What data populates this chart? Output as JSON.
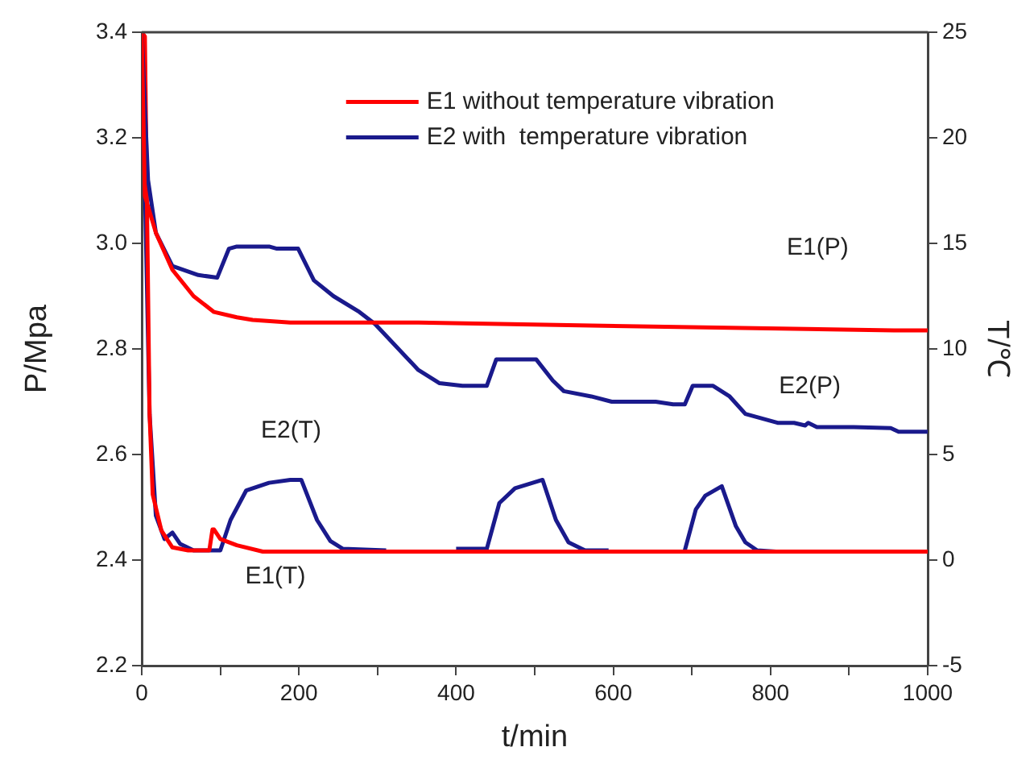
{
  "chart_data": {
    "type": "line",
    "xlabel": "t/min",
    "ylabel": "P/Mpa",
    "y2label": "T/℃",
    "xlim": [
      0,
      1000
    ],
    "xticks": [
      0,
      {
        "value": 100,
        "label": null
      },
      200,
      {
        "value": 300,
        "label": null
      },
      400,
      {
        "value": 500,
        "label": null
      },
      600,
      {
        "value": 700,
        "label": null
      },
      800,
      {
        "value": 900,
        "label": null
      },
      1000
    ],
    "ylim": [
      2.2,
      3.4
    ],
    "yticks": [
      2.2,
      2.4,
      2.6,
      2.8,
      {
        "value": 3,
        "label": "3.0"
      },
      3.2,
      3.4
    ],
    "y2lim": [
      -5,
      25
    ],
    "y2ticks": [
      -5,
      0,
      5,
      10,
      15,
      20,
      25
    ],
    "grid": false,
    "legend": "top",
    "marker": "none",
    "line_style": "solid",
    "series": [
      {
        "name": "E1 without temperature vibration",
        "color": "#ff0000",
        "x": [
          0,
          4,
          18,
          39,
          66,
          92,
          121,
          141,
          189,
          352,
          543,
          957,
          1000
        ],
        "values": [
          3.4,
          3.09,
          3.02,
          2.95,
          2.9,
          2.87,
          2.86,
          2.855,
          2.85,
          2.85,
          2.845,
          2.835,
          2.835
        ]
      },
      {
        "name": "E2 with  temperature vibration",
        "color": "#1a1a8c",
        "x": [
          0,
          8,
          18,
          39,
          72,
          96,
          111,
          121,
          162,
          172,
          199,
          219,
          244,
          277,
          297,
          352,
          379,
          408,
          439,
          451,
          502,
          523,
          537,
          572,
          598,
          654,
          676,
          691,
          701,
          727,
          748,
          768,
          809,
          830,
          844,
          848,
          859,
          906,
          953,
          963,
          1000
        ],
        "values": [
          3.4,
          3.12,
          3.02,
          2.957,
          2.94,
          2.935,
          2.99,
          2.994,
          2.994,
          2.99,
          2.99,
          2.93,
          2.9,
          2.87,
          2.847,
          2.76,
          2.735,
          2.73,
          2.73,
          2.78,
          2.78,
          2.74,
          2.72,
          2.71,
          2.7,
          2.7,
          2.695,
          2.695,
          2.73,
          2.73,
          2.71,
          2.677,
          2.66,
          2.66,
          2.655,
          2.66,
          2.652,
          2.652,
          2.65,
          2.643,
          2.643
        ]
      },
      {
        "color": "#ff0000",
        "axis": "y2",
        "x": [
          0,
          4,
          10,
          14,
          25,
          39,
          59,
          86,
          90,
          92,
          100,
          121,
          154,
          1000
        ],
        "values": [
          25,
          24.8,
          6.9,
          3.1,
          1.4,
          0.6,
          0.46,
          0.46,
          1.45,
          1.45,
          1.0,
          0.7,
          0.4,
          0.4
        ]
      },
      {
        "color": "#1a1a8c",
        "axis": "y2",
        "x": [
          0,
          10,
          18,
          29,
          39,
          49,
          66,
          100,
          113,
          133,
          162,
          189,
          203,
          223,
          240,
          256,
          311,
          312,
          400,
          439,
          455,
          475,
          510,
          527,
          543,
          564,
          594,
          595,
          691,
          705,
          717,
          738,
          756,
          768,
          783,
          807
        ],
        "values": [
          25,
          6.9,
          2.1,
          1.0,
          1.3,
          0.76,
          0.46,
          0.46,
          1.9,
          3.3,
          3.66,
          3.8,
          3.8,
          1.9,
          0.9,
          0.53,
          0.46,
          null,
          0.53,
          0.53,
          2.7,
          3.4,
          3.8,
          1.9,
          0.84,
          0.46,
          0.46,
          null,
          0.46,
          2.4,
          3.05,
          3.5,
          1.6,
          0.84,
          0.46,
          0.4
        ]
      }
    ],
    "annotations": [
      "E1(P)",
      "E2(P)",
      "E1(T)",
      "E2(T)"
    ]
  }
}
